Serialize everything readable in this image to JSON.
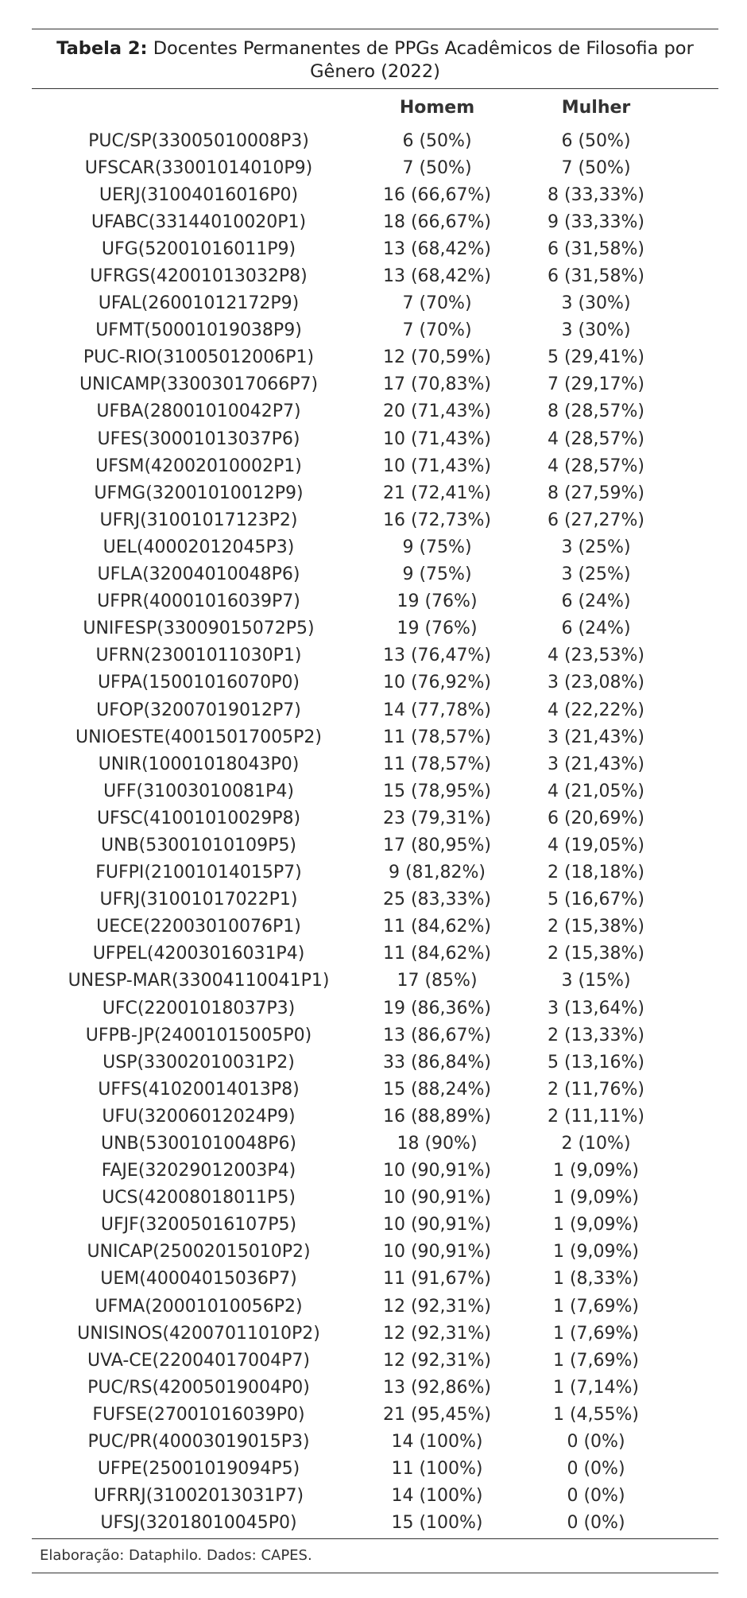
{
  "caption": {
    "label": "Tabela 2:",
    "text": " Docentes Permanentes de PPGs Acadêmicos de Filosofia por Gênero (2022)"
  },
  "columns": {
    "name": "",
    "homem": "Homem",
    "mulher": "Mulher"
  },
  "rows": [
    [
      "PUC/SP(33005010008P3)",
      "6 (50%)",
      "6 (50%)"
    ],
    [
      "UFSCAR(33001014010P9)",
      "7 (50%)",
      "7 (50%)"
    ],
    [
      "UERJ(31004016016P0)",
      "16 (66,67%)",
      "8 (33,33%)"
    ],
    [
      "UFABC(33144010020P1)",
      "18 (66,67%)",
      "9 (33,33%)"
    ],
    [
      "UFG(52001016011P9)",
      "13 (68,42%)",
      "6 (31,58%)"
    ],
    [
      "UFRGS(42001013032P8)",
      "13 (68,42%)",
      "6 (31,58%)"
    ],
    [
      "UFAL(26001012172P9)",
      "7 (70%)",
      "3 (30%)"
    ],
    [
      "UFMT(50001019038P9)",
      "7 (70%)",
      "3 (30%)"
    ],
    [
      "PUC-RIO(31005012006P1)",
      "12 (70,59%)",
      "5 (29,41%)"
    ],
    [
      "UNICAMP(33003017066P7)",
      "17 (70,83%)",
      "7 (29,17%)"
    ],
    [
      "UFBA(28001010042P7)",
      "20 (71,43%)",
      "8 (28,57%)"
    ],
    [
      "UFES(30001013037P6)",
      "10 (71,43%)",
      "4 (28,57%)"
    ],
    [
      "UFSM(42002010002P1)",
      "10 (71,43%)",
      "4 (28,57%)"
    ],
    [
      "UFMG(32001010012P9)",
      "21 (72,41%)",
      "8 (27,59%)"
    ],
    [
      "UFRJ(31001017123P2)",
      "16 (72,73%)",
      "6 (27,27%)"
    ],
    [
      "UEL(40002012045P3)",
      "9 (75%)",
      "3 (25%)"
    ],
    [
      "UFLA(32004010048P6)",
      "9 (75%)",
      "3 (25%)"
    ],
    [
      "UFPR(40001016039P7)",
      "19 (76%)",
      "6 (24%)"
    ],
    [
      "UNIFESP(33009015072P5)",
      "19 (76%)",
      "6 (24%)"
    ],
    [
      "UFRN(23001011030P1)",
      "13 (76,47%)",
      "4 (23,53%)"
    ],
    [
      "UFPA(15001016070P0)",
      "10 (76,92%)",
      "3 (23,08%)"
    ],
    [
      "UFOP(32007019012P7)",
      "14 (77,78%)",
      "4 (22,22%)"
    ],
    [
      "UNIOESTE(40015017005P2)",
      "11 (78,57%)",
      "3 (21,43%)"
    ],
    [
      "UNIR(10001018043P0)",
      "11 (78,57%)",
      "3 (21,43%)"
    ],
    [
      "UFF(31003010081P4)",
      "15 (78,95%)",
      "4 (21,05%)"
    ],
    [
      "UFSC(41001010029P8)",
      "23 (79,31%)",
      "6 (20,69%)"
    ],
    [
      "UNB(53001010109P5)",
      "17 (80,95%)",
      "4 (19,05%)"
    ],
    [
      "FUFPI(21001014015P7)",
      "9 (81,82%)",
      "2 (18,18%)"
    ],
    [
      "UFRJ(31001017022P1)",
      "25 (83,33%)",
      "5 (16,67%)"
    ],
    [
      "UECE(22003010076P1)",
      "11 (84,62%)",
      "2 (15,38%)"
    ],
    [
      "UFPEL(42003016031P4)",
      "11 (84,62%)",
      "2 (15,38%)"
    ],
    [
      "UNESP-MAR(33004110041P1)",
      "17 (85%)",
      "3 (15%)"
    ],
    [
      "UFC(22001018037P3)",
      "19 (86,36%)",
      "3 (13,64%)"
    ],
    [
      "UFPB-JP(24001015005P0)",
      "13 (86,67%)",
      "2 (13,33%)"
    ],
    [
      "USP(33002010031P2)",
      "33 (86,84%)",
      "5 (13,16%)"
    ],
    [
      "UFFS(41020014013P8)",
      "15 (88,24%)",
      "2 (11,76%)"
    ],
    [
      "UFU(32006012024P9)",
      "16 (88,89%)",
      "2 (11,11%)"
    ],
    [
      "UNB(53001010048P6)",
      "18 (90%)",
      "2 (10%)"
    ],
    [
      "FAJE(32029012003P4)",
      "10 (90,91%)",
      "1 (9,09%)"
    ],
    [
      "UCS(42008018011P5)",
      "10 (90,91%)",
      "1 (9,09%)"
    ],
    [
      "UFJF(32005016107P5)",
      "10 (90,91%)",
      "1 (9,09%)"
    ],
    [
      "UNICAP(25002015010P2)",
      "10 (90,91%)",
      "1 (9,09%)"
    ],
    [
      "UEM(40004015036P7)",
      "11 (91,67%)",
      "1 (8,33%)"
    ],
    [
      "UFMA(20001010056P2)",
      "12 (92,31%)",
      "1 (7,69%)"
    ],
    [
      "UNISINOS(42007011010P2)",
      "12 (92,31%)",
      "1 (7,69%)"
    ],
    [
      "UVA-CE(22004017004P7)",
      "12 (92,31%)",
      "1 (7,69%)"
    ],
    [
      "PUC/RS(42005019004P0)",
      "13 (92,86%)",
      "1 (7,14%)"
    ],
    [
      "FUFSE(27001016039P0)",
      "21 (95,45%)",
      "1 (4,55%)"
    ],
    [
      "PUC/PR(40003019015P3)",
      "14 (100%)",
      "0 (0%)"
    ],
    [
      "UFPE(25001019094P5)",
      "11 (100%)",
      "0 (0%)"
    ],
    [
      "UFRRJ(31002013031P7)",
      "14 (100%)",
      "0 (0%)"
    ],
    [
      "UFSJ(32018010045P0)",
      "15 (100%)",
      "0 (0%)"
    ]
  ],
  "footer": "Elaboração: Dataphilo. Dados: CAPES."
}
